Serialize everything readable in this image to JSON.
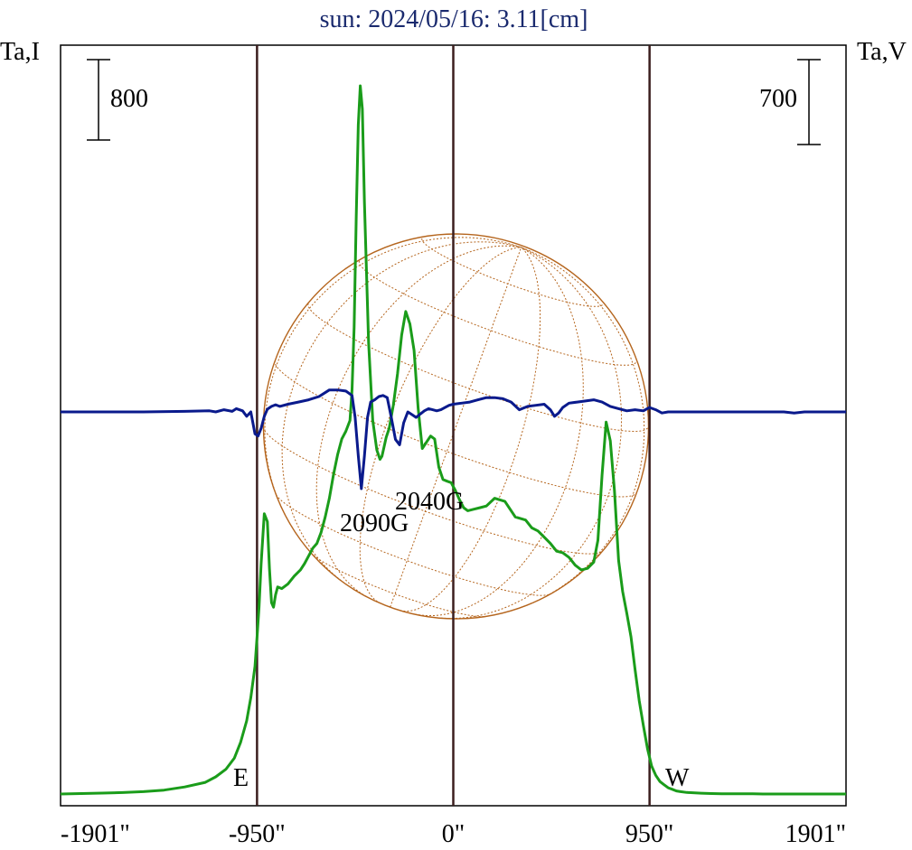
{
  "colors": {
    "intensity": "#1a9c1a",
    "polarization": "#0a1a8c",
    "title": "#1a2a6e",
    "sun_grid": "#b5651d",
    "marker_lines": "#3b1e1e",
    "frame": "#000000"
  },
  "chart_data": {
    "type": "line",
    "title": "sun: 2024/05/16: 3.11[cm]",
    "left_axis_label": "Ta,I",
    "right_axis_label": "Ta,V",
    "xlim": [
      -1901,
      1901
    ],
    "x_ticks": [
      {
        "value": -1901,
        "label": "-1901\""
      },
      {
        "value": -950,
        "label": "-950\""
      },
      {
        "value": 0,
        "label": "0\""
      },
      {
        "value": 950,
        "label": "950\""
      },
      {
        "value": 1901,
        "label": "1901\""
      }
    ],
    "vertical_markers": [
      -950,
      0,
      950
    ],
    "scale_bars": [
      {
        "axis": "left",
        "label": "800"
      },
      {
        "axis": "right",
        "label": "700"
      }
    ],
    "limb_labels": {
      "east": "E",
      "west": "W"
    },
    "annotations": [
      "2090G",
      "2040G"
    ],
    "grid": false,
    "series": [
      {
        "key": "I",
        "units": "relative (baseline 0, scale bar 800)",
        "x": [
          -1901,
          -1800,
          -1700,
          -1600,
          -1500,
          -1400,
          -1300,
          -1200,
          -1150,
          -1100,
          -1060,
          -1030,
          -1000,
          -980,
          -960,
          -950,
          -940,
          -930,
          -915,
          -900,
          -890,
          -880,
          -870,
          -860,
          -850,
          -830,
          -800,
          -770,
          -740,
          -720,
          -700,
          -680,
          -660,
          -640,
          -620,
          -600,
          -580,
          -560,
          -540,
          -520,
          -500,
          -490,
          -480,
          -470,
          -460,
          -450,
          -440,
          -430,
          -410,
          -390,
          -370,
          -355,
          -345,
          -335,
          -325,
          -310,
          -290,
          -270,
          -250,
          -230,
          -210,
          -190,
          -170,
          -150,
          -130,
          -110,
          -90,
          -70,
          -50,
          -30,
          -10,
          10,
          30,
          50,
          70,
          100,
          130,
          160,
          200,
          250,
          300,
          350,
          380,
          410,
          440,
          470,
          500,
          530,
          560,
          590,
          620,
          650,
          680,
          700,
          720,
          740,
          760,
          780,
          800,
          820,
          840,
          860,
          880,
          900,
          920,
          940,
          960,
          980,
          1000,
          1020,
          1040,
          1060,
          1080,
          1100,
          1130,
          1160,
          1200,
          1250,
          1300,
          1350,
          1400,
          1450,
          1500,
          1600,
          1700,
          1800,
          1901
        ],
        "values": [
          0,
          3,
          6,
          9,
          15,
          25,
          45,
          75,
          110,
          160,
          230,
          330,
          470,
          620,
          820,
          1010,
          1200,
          1480,
          1800,
          1750,
          1450,
          1230,
          1200,
          1280,
          1330,
          1320,
          1350,
          1400,
          1440,
          1480,
          1530,
          1580,
          1610,
          1680,
          1780,
          1900,
          2050,
          2180,
          2280,
          2330,
          2400,
          2600,
          3000,
          3700,
          4300,
          4550,
          4400,
          3800,
          2900,
          2400,
          2210,
          2150,
          2170,
          2230,
          2290,
          2350,
          2500,
          2700,
          2950,
          3100,
          3020,
          2850,
          2480,
          2220,
          2260,
          2300,
          2280,
          2100,
          2020,
          2010,
          2000,
          1950,
          1890,
          1840,
          1820,
          1830,
          1840,
          1850,
          1900,
          1880,
          1780,
          1760,
          1710,
          1690,
          1650,
          1610,
          1560,
          1550,
          1520,
          1470,
          1440,
          1450,
          1490,
          1630,
          2050,
          2390,
          2270,
          1950,
          1500,
          1300,
          1160,
          1010,
          800,
          600,
          440,
          290,
          180,
          120,
          80,
          60,
          40,
          30,
          20,
          15,
          10,
          8,
          5,
          3,
          2,
          2,
          1,
          1,
          0,
          0,
          0,
          0,
          0
        ]
      },
      {
        "key": "V",
        "units": "relative (baseline 0, scale bar 700)",
        "x": [
          -1901,
          -1700,
          -1500,
          -1300,
          -1180,
          -1150,
          -1110,
          -1070,
          -1050,
          -1020,
          -1000,
          -980,
          -960,
          -945,
          -930,
          -915,
          -900,
          -880,
          -860,
          -840,
          -800,
          -750,
          -700,
          -650,
          -600,
          -560,
          -520,
          -490,
          -475,
          -460,
          -445,
          -430,
          -415,
          -400,
          -380,
          -360,
          -340,
          -320,
          -300,
          -280,
          -260,
          -240,
          -220,
          -200,
          -180,
          -160,
          -140,
          -120,
          -100,
          -80,
          -60,
          -40,
          -20,
          0,
          40,
          80,
          120,
          160,
          200,
          240,
          280,
          320,
          360,
          400,
          440,
          470,
          490,
          510,
          530,
          560,
          600,
          640,
          680,
          720,
          760,
          800,
          840,
          880,
          920,
          950,
          980,
          1010,
          1040,
          1060,
          1080,
          1100,
          1130,
          1200,
          1400,
          1600,
          1650,
          1700,
          1901
        ],
        "values": [
          0,
          0,
          0,
          1,
          2,
          0,
          4,
          1,
          6,
          2,
          -8,
          0,
          -40,
          -44,
          -30,
          -8,
          5,
          10,
          13,
          10,
          14,
          18,
          22,
          28,
          40,
          40,
          38,
          30,
          -10,
          -80,
          -140,
          -80,
          -10,
          18,
          22,
          28,
          30,
          26,
          -10,
          -50,
          -60,
          -20,
          0,
          -5,
          -10,
          -4,
          2,
          6,
          4,
          2,
          4,
          8,
          12,
          14,
          16,
          18,
          22,
          26,
          26,
          24,
          18,
          4,
          10,
          12,
          14,
          4,
          -8,
          -2,
          8,
          16,
          18,
          20,
          22,
          18,
          10,
          6,
          2,
          4,
          2,
          8,
          4,
          -2,
          0,
          0,
          0,
          0,
          0,
          0,
          0,
          0,
          -2,
          0,
          0
        ]
      }
    ]
  }
}
